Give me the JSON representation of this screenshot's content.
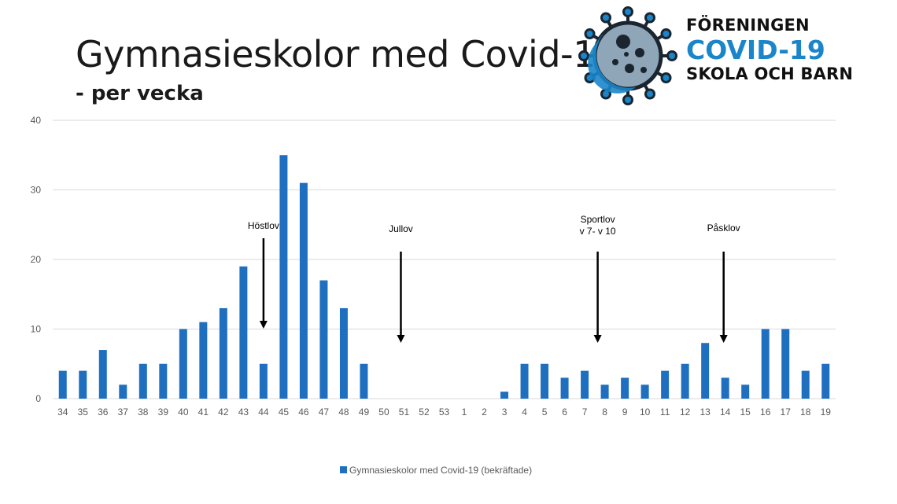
{
  "title": "Gymnasieskolor med Covid-19",
  "subtitle": "- per vecka",
  "logo": {
    "line1": "FÖRENINGEN",
    "line2": "COVID-19",
    "line3": "SKOLA OCH BARN"
  },
  "colors": {
    "bar": "#1f6fc0",
    "grid": "#d9d9d9",
    "logo_blue": "#1a86c9"
  },
  "chart_data": {
    "type": "bar",
    "categories": [
      "34",
      "35",
      "36",
      "37",
      "38",
      "39",
      "40",
      "41",
      "42",
      "43",
      "44",
      "45",
      "46",
      "47",
      "48",
      "49",
      "50",
      "51",
      "52",
      "53",
      "1",
      "2",
      "3",
      "4",
      "5",
      "6",
      "7",
      "8",
      "9",
      "10",
      "11",
      "12",
      "13",
      "14",
      "15",
      "16",
      "17",
      "18",
      "19"
    ],
    "series": [
      {
        "name": "Gymnasieskolor med Covid-19 (bekräftade)",
        "values": [
          4,
          4,
          7,
          2,
          5,
          5,
          10,
          11,
          13,
          19,
          5,
          35,
          31,
          17,
          13,
          5,
          0,
          0,
          0,
          0,
          0,
          0,
          1,
          5,
          5,
          3,
          4,
          2,
          3,
          2,
          4,
          5,
          8,
          3,
          2,
          10,
          10,
          4,
          5
        ]
      }
    ],
    "ylim": [
      0,
      40
    ],
    "yticks": [
      "0",
      "10",
      "20",
      "30",
      "40"
    ],
    "grid": true,
    "legend_position": "bottom",
    "annotations": [
      {
        "lines": [
          "Höstlov"
        ],
        "category": "44"
      },
      {
        "lines": [
          "Jullov"
        ],
        "category": "51"
      },
      {
        "lines": [
          "Sportlov",
          "v 7- v 10"
        ],
        "category": "8"
      },
      {
        "lines": [
          "Påsklov"
        ],
        "category": "14"
      }
    ]
  }
}
